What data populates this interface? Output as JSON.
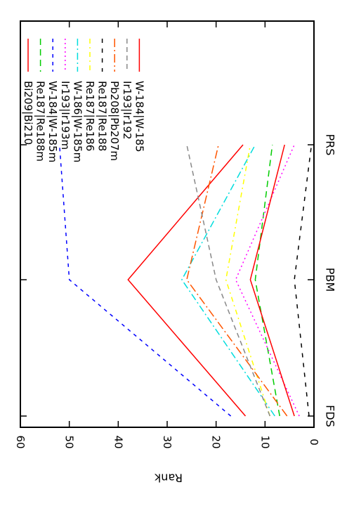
{
  "chart_data": {
    "type": "line",
    "orientation": "rotated-90",
    "categories": [
      "FDS",
      "PBM",
      "PRS"
    ],
    "ylabel": "Rank",
    "xlabel": "",
    "ylim": [
      0,
      60
    ],
    "yticks": [
      0,
      10,
      20,
      30,
      40,
      50,
      60
    ],
    "grid": false,
    "legend_position": "top-right",
    "series": [
      {
        "name": "Bi209|Bi210",
        "values": [
          14,
          38,
          14.5
        ],
        "color": "#ff0000",
        "dash": ""
      },
      {
        "name": "Re187|Re188m",
        "values": [
          7,
          12,
          8.5
        ],
        "color": "#00cc00",
        "dash": "9,6"
      },
      {
        "name": "W-184|W-185m",
        "values": [
          17,
          50,
          52
        ],
        "color": "#0000ff",
        "dash": "5,6"
      },
      {
        "name": "Ir193|Ir193m",
        "values": [
          3,
          16,
          4
        ],
        "color": "#ff00ff",
        "dash": "2,4"
      },
      {
        "name": "W-186|W-185m",
        "values": [
          8,
          27,
          12
        ],
        "color": "#00dddd",
        "dash": "10,4,2,4"
      },
      {
        "name": "Re187|Re186",
        "values": [
          9,
          18,
          13
        ],
        "color": "#ffff00",
        "dash": "7,5,2,5"
      },
      {
        "name": "Re187|Re188",
        "values": [
          1,
          4,
          0.5
        ],
        "color": "#000000",
        "dash": "6,8"
      },
      {
        "name": "Pb208|Pb207m",
        "values": [
          5.5,
          26,
          19.5
        ],
        "color": "#ff5500",
        "dash": "12,4,2,4"
      },
      {
        "name": "Ir193|Ir192",
        "values": [
          9,
          20,
          26
        ],
        "color": "#888888",
        "dash": "7,5"
      },
      {
        "name": "W-184|W-185",
        "values": [
          4,
          13,
          6
        ],
        "color": "#ff0000",
        "dash": ""
      }
    ]
  }
}
